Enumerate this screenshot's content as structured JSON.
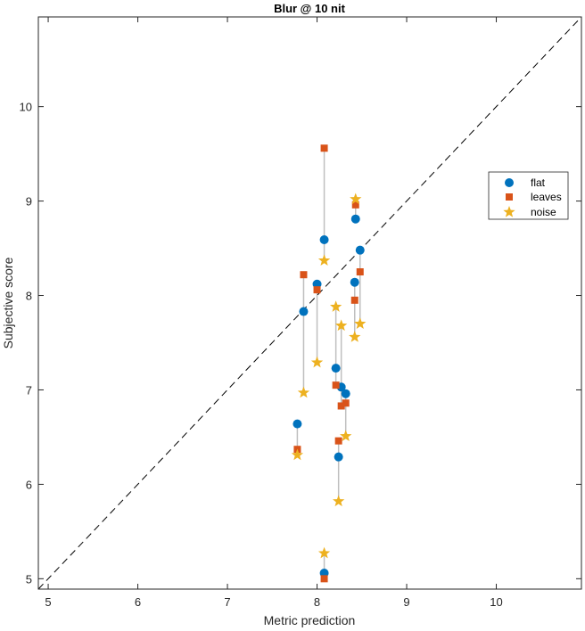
{
  "chart_data": {
    "type": "scatter",
    "title": "Blur @ 10 nit",
    "xlabel": "Metric prediction",
    "ylabel": "Subjective score",
    "xlim": [
      4.89,
      10.95
    ],
    "ylim": [
      4.89,
      10.95
    ],
    "xticks": [
      5,
      6,
      7,
      8,
      9,
      10
    ],
    "yticks": [
      5,
      6,
      7,
      8,
      9,
      10
    ],
    "xtick_labels": [
      "5",
      "6",
      "7",
      "8",
      "9",
      "10"
    ],
    "ytick_labels": [
      "5",
      "6",
      "7",
      "8",
      "9",
      "10"
    ],
    "grid": false,
    "reference_line": "y = x (dashed)",
    "legend_position": "right",
    "x": [
      7.78,
      7.85,
      8.0,
      8.08,
      8.08,
      8.21,
      8.24,
      8.27,
      8.32,
      8.43,
      8.42,
      8.48
    ],
    "series": [
      {
        "name": "flat",
        "marker": "circle",
        "color": "#0072BD",
        "values": [
          6.64,
          7.83,
          8.12,
          8.59,
          5.06,
          7.23,
          6.29,
          7.03,
          6.96,
          8.81,
          8.14,
          8.48
        ]
      },
      {
        "name": "leaves",
        "marker": "square",
        "color": "#D95319",
        "values": [
          6.37,
          8.22,
          8.06,
          9.56,
          5.0,
          7.05,
          6.46,
          6.83,
          6.86,
          8.96,
          7.95,
          8.25
        ]
      },
      {
        "name": "noise",
        "marker": "star",
        "color": "#EDB120",
        "values": [
          6.31,
          6.97,
          7.29,
          8.37,
          5.27,
          7.88,
          5.82,
          7.68,
          6.51,
          9.02,
          7.56,
          7.7
        ]
      }
    ],
    "connector_color": "#BFBFBF"
  }
}
